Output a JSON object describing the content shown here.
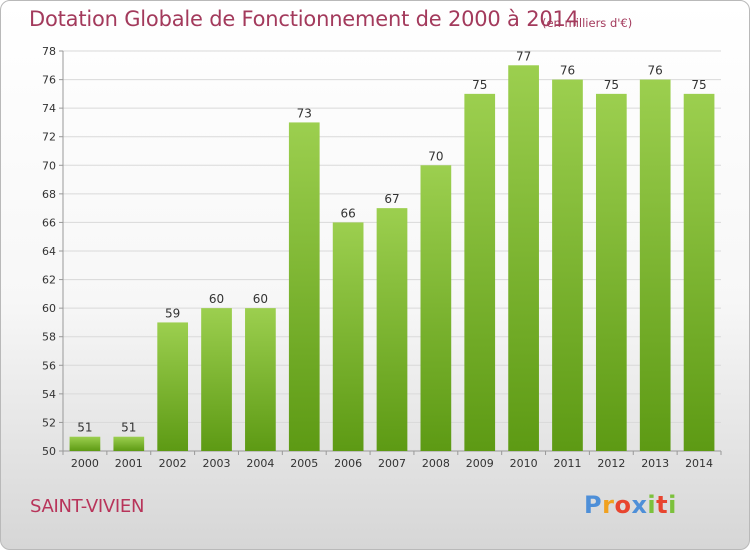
{
  "header": {
    "title": "Dotation Globale de Fonctionnement de 2000 à 2014",
    "subtitle": "(en milliers d'€)"
  },
  "footer": {
    "commune": "SAINT-VIVIEN",
    "logo_letters": [
      "P",
      "r",
      "o",
      "x",
      "i",
      "t",
      "i"
    ],
    "logo_colors": [
      "#4e8fd8",
      "#f0a11f",
      "#e8452f",
      "#4e8fd8",
      "#7cc13c",
      "#e8452f",
      "#7cc13c"
    ]
  },
  "chart_data": {
    "type": "bar",
    "title": "Dotation Globale de Fonctionnement de 2000 à 2014",
    "subtitle": "(en milliers d'€)",
    "xlabel": "",
    "ylabel": "",
    "categories": [
      "2000",
      "2001",
      "2002",
      "2003",
      "2004",
      "2005",
      "2006",
      "2007",
      "2008",
      "2009",
      "2010",
      "2011",
      "2012",
      "2013",
      "2014"
    ],
    "values": [
      51,
      51,
      59,
      60,
      60,
      73,
      66,
      67,
      70,
      75,
      77,
      76,
      75,
      76,
      75
    ],
    "ylim": [
      50,
      78
    ],
    "yticks": [
      50,
      52,
      54,
      56,
      58,
      60,
      62,
      64,
      66,
      68,
      70,
      72,
      74,
      76,
      78
    ],
    "grid": true,
    "bar_color_top": "#9ccf4f",
    "bar_color_bottom": "#5d9a14"
  }
}
